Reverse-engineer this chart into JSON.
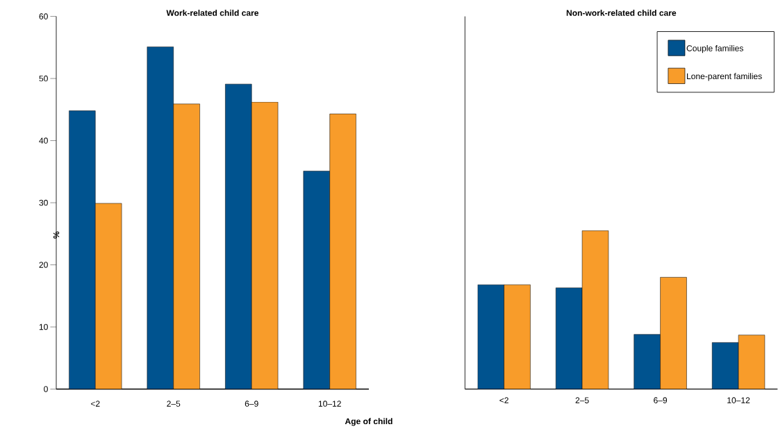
{
  "chart_data": [
    {
      "type": "bar",
      "title": "Work-related child care",
      "xlabel": "Age of child",
      "ylabel": "%",
      "categories": [
        "<2",
        "2–5",
        "6–9",
        "10–12"
      ],
      "series": [
        {
          "color": "#00538f",
          "values": [
            44.8,
            55.1,
            49.1,
            35.1
          ]
        },
        {
          "color": "#f89c2a",
          "values": [
            29.9,
            45.9,
            46.2,
            44.3
          ]
        }
      ],
      "ylim": [
        0,
        60
      ],
      "yticks": [
        0,
        10,
        20,
        30,
        40,
        50,
        60
      ],
      "grid": false,
      "legend": false
    },
    {
      "type": "bar",
      "title": "Non-work-related child care",
      "categories": [
        "<2",
        "2–5",
        "6–9",
        "10–12"
      ],
      "series": [
        {
          "name": "Couple families",
          "color": "#00538f",
          "values": [
            16.8,
            16.3,
            8.8,
            7.5
          ]
        },
        {
          "name": "Lone-parent families",
          "color": "#f89c2a",
          "values": [
            16.8,
            25.5,
            18.0,
            8.7
          ]
        }
      ],
      "ylim": [
        0,
        60
      ],
      "yticks": [
        0,
        10,
        20,
        30,
        40,
        50,
        60
      ],
      "grid": false,
      "legend": "top right",
      "tick_labels": "x"
    }
  ]
}
